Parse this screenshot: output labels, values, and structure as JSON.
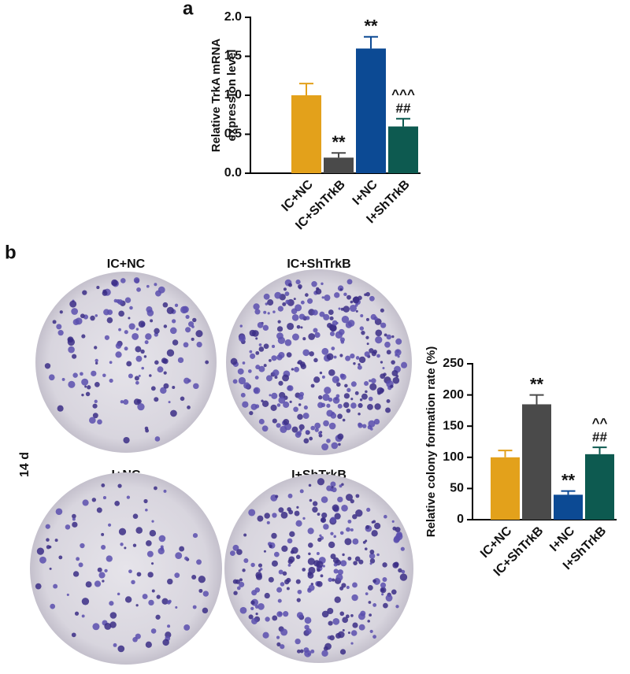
{
  "figure": {
    "panel_labels": [
      "a",
      "b"
    ],
    "dish_labels": [
      "IC+NC",
      "IC+ShTrkB",
      "I+NC",
      "I+ShTrkB"
    ],
    "time_label": "14 d"
  },
  "chart_data": [
    {
      "type": "bar",
      "ylabel": [
        "Relative TrkA mRNA",
        "expression level"
      ],
      "categories": [
        "IC+NC",
        "IC+ShTrkB",
        "I+NC",
        "I+ShTrkB"
      ],
      "values": [
        1.0,
        0.2,
        1.6,
        0.6
      ],
      "errors": [
        0.15,
        0.06,
        0.15,
        0.1
      ],
      "colors": [
        "#e3a11b",
        "#4a4a4a",
        "#0c4a94",
        "#0d5a50"
      ],
      "annotations": [
        null,
        [
          "**"
        ],
        [
          "**"
        ],
        [
          "^^^",
          "##"
        ]
      ],
      "ylim": [
        0,
        2
      ],
      "yticks": [
        {
          "value": 0,
          "label": "0.0"
        },
        0.5,
        {
          "value": 1,
          "label": "1.0"
        },
        1.5,
        {
          "value": 2,
          "label": "2.0"
        }
      ]
    },
    {
      "type": "bar",
      "ylabel": [
        "Relative colony formation rate (%)"
      ],
      "categories": [
        "IC+NC",
        "IC+ShTrkB",
        "I+NC",
        "I+ShTrkB"
      ],
      "values": [
        100,
        185,
        40,
        105
      ],
      "errors": [
        11,
        15,
        6,
        11
      ],
      "colors": [
        "#e3a11b",
        "#4a4a4a",
        "#0c4a94",
        "#0d5a50"
      ],
      "annotations": [
        null,
        [
          "**"
        ],
        [
          "**"
        ],
        [
          "^^",
          "##"
        ]
      ],
      "ylim": [
        0,
        250
      ],
      "yticks": [
        0,
        50,
        100,
        150,
        200,
        250
      ]
    }
  ]
}
